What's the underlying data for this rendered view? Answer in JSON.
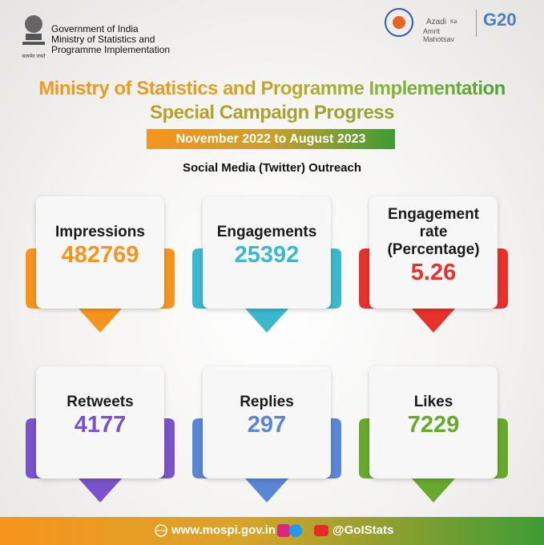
{
  "header": {
    "org_lines": [
      "Government of India",
      "Ministry of Statistics and",
      "Programme Implementation"
    ],
    "emblem_caption": "सत्यमेव जयते",
    "logos": [
      "Azadi",
      "Ka",
      "Amrit Mahotsav",
      "G20"
    ]
  },
  "title": [
    "Ministry of Statistics and Programme Implementation",
    "Special Campaign Progress"
  ],
  "period": "November 2022 to August 2023",
  "subtitle": "Social Media (Twitter) Outreach",
  "cards": [
    {
      "label": "Impressions",
      "value": 482769,
      "color": "#f7941d"
    },
    {
      "label": "Engagements",
      "value": 25392,
      "color": "#3bb8cc"
    },
    {
      "label": "Engagement rate (Percentage)",
      "value": 5.26,
      "color": "#e8312a"
    },
    {
      "label": "Retweets",
      "value": 4177,
      "color": "#7a52cc"
    },
    {
      "label": "Replies",
      "value": 297,
      "color": "#5a86d6"
    },
    {
      "label": "Likes",
      "value": 7229,
      "color": "#67a92e"
    }
  ],
  "footer": {
    "website": "www.mospi.gov.in",
    "handle": "@GoIStats"
  }
}
